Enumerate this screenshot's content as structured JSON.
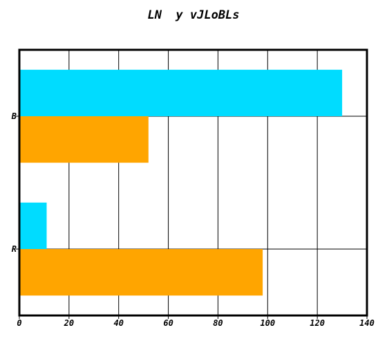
{
  "chart_data": {
    "type": "bar",
    "orientation": "horizontal",
    "title": "LN  y vJLoBLs",
    "xlabel": "",
    "ylabel": "",
    "categories": [
      "B",
      "R"
    ],
    "series": [
      {
        "values": [
          130,
          11
        ],
        "color": "#00dcff"
      },
      {
        "values": [
          52,
          98
        ],
        "color": "#ffa500"
      }
    ],
    "xlim": [
      0,
      140
    ],
    "xticks": [
      0,
      20,
      40,
      60,
      80,
      100,
      120,
      140
    ],
    "grid": true,
    "legend": "none"
  }
}
